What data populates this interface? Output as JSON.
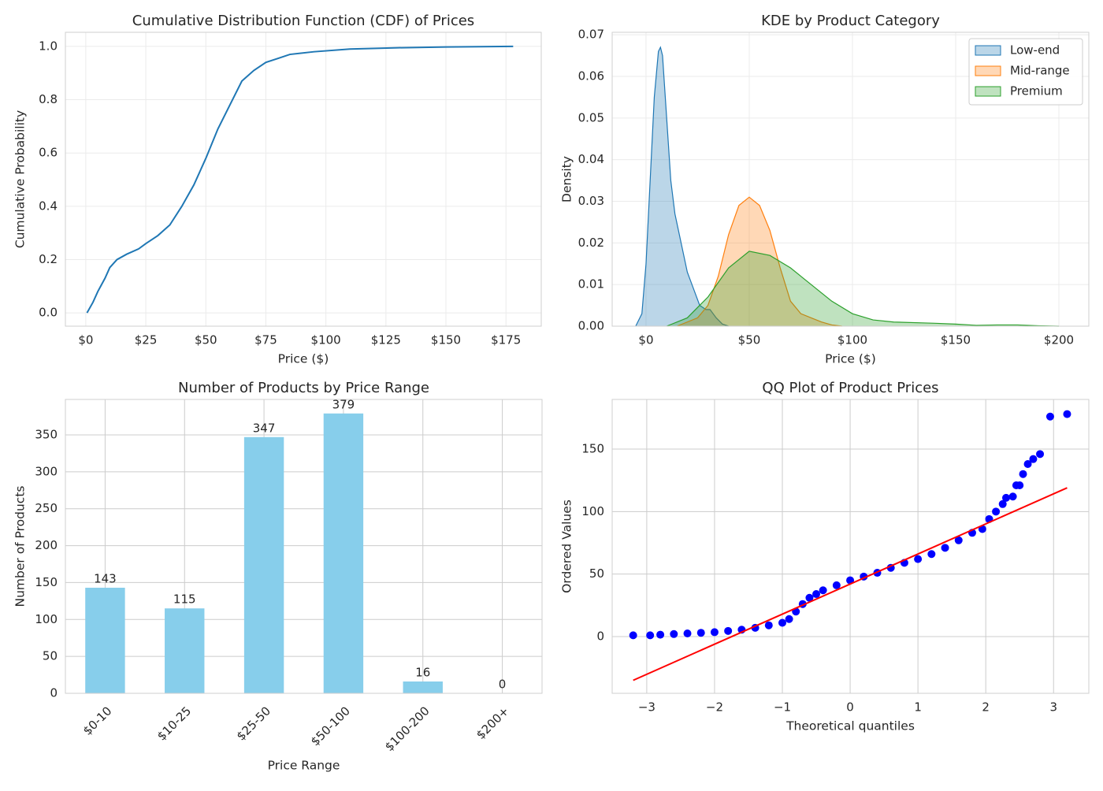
{
  "chart_data": [
    {
      "type": "line",
      "title": "Cumulative Distribution Function (CDF) of Prices",
      "xlabel": "Price ($)",
      "ylabel": "Cumulative Probability",
      "xlim": [
        -8.5,
        189.7
      ],
      "ylim": [
        -0.05,
        1.053
      ],
      "xticks": [
        {
          "value": 0,
          "label": "$0"
        },
        {
          "value": 25,
          "label": "$25"
        },
        {
          "value": 50,
          "label": "$50"
        },
        {
          "value": 75,
          "label": "$75"
        },
        {
          "value": 100,
          "label": "$100"
        },
        {
          "value": 125,
          "label": "$125"
        },
        {
          "value": 150,
          "label": "$150"
        },
        {
          "value": 175,
          "label": "$175"
        }
      ],
      "yticks": [
        {
          "value": 0,
          "label": "0.0"
        },
        0.2,
        0.4,
        0.6,
        0.8,
        {
          "value": 1,
          "label": "1.0"
        }
      ],
      "grid": true,
      "grid_color": "#ebebeb",
      "series": [
        {
          "color": "#1f77b4",
          "x": [
            0.5,
            3,
            5,
            8,
            10,
            13,
            17,
            22,
            25,
            30,
            35,
            40,
            45,
            50,
            55,
            60,
            65,
            70,
            75,
            80,
            85,
            95,
            110,
            130,
            150,
            178
          ],
          "values": [
            0,
            0.04,
            0.08,
            0.13,
            0.17,
            0.2,
            0.22,
            0.24,
            0.26,
            0.29,
            0.33,
            0.4,
            0.48,
            0.58,
            0.69,
            0.78,
            0.87,
            0.91,
            0.94,
            0.955,
            0.97,
            0.98,
            0.99,
            0.995,
            0.998,
            1.0
          ]
        }
      ]
    },
    {
      "type": "area",
      "title": "KDE by Product Category",
      "xlabel": "Price ($)",
      "ylabel": "Density",
      "xlim": [
        -16.4,
        214.5
      ],
      "ylim": [
        0,
        0.0706
      ],
      "xticks": [
        {
          "value": 0,
          "label": "$0"
        },
        {
          "value": 50,
          "label": "$50"
        },
        {
          "value": 100,
          "label": "$100"
        },
        {
          "value": 150,
          "label": "$150"
        },
        {
          "value": 200,
          "label": "$200"
        }
      ],
      "yticks": [
        {
          "value": 0,
          "label": "0.00"
        },
        0.01,
        0.02,
        0.03,
        0.04,
        0.05,
        0.06,
        0.07
      ],
      "grid": true,
      "grid_color": "#ebebeb",
      "legend": "upper right",
      "series": [
        {
          "name": "Low-end",
          "color": "#1f77b4",
          "x": [
            -5,
            -2,
            0,
            2,
            4,
            6,
            7,
            8,
            10,
            12,
            14,
            17,
            20,
            23,
            26,
            29,
            31,
            34,
            37,
            40
          ],
          "values": [
            0,
            0.003,
            0.015,
            0.035,
            0.055,
            0.066,
            0.067,
            0.065,
            0.05,
            0.035,
            0.027,
            0.02,
            0.013,
            0.009,
            0.005,
            0.004,
            0.004,
            0.002,
            0.0005,
            0
          ]
        },
        {
          "name": "Mid-range",
          "color": "#ff7f0e",
          "x": [
            15,
            25,
            30,
            35,
            40,
            45,
            50,
            55,
            60,
            65,
            70,
            75,
            80,
            85,
            90,
            95
          ],
          "values": [
            0,
            0.002,
            0.005,
            0.012,
            0.022,
            0.029,
            0.031,
            0.029,
            0.023,
            0.014,
            0.006,
            0.003,
            0.002,
            0.001,
            0.0003,
            0
          ]
        },
        {
          "name": "Premium",
          "color": "#2ca02c",
          "x": [
            10,
            20,
            30,
            40,
            50,
            60,
            70,
            80,
            90,
            100,
            110,
            120,
            140,
            150,
            160,
            170,
            180,
            190,
            200
          ],
          "values": [
            0,
            0.002,
            0.007,
            0.014,
            0.018,
            0.017,
            0.014,
            0.01,
            0.006,
            0.003,
            0.0015,
            0.001,
            0.0007,
            0.0005,
            0.0002,
            0.0003,
            0.0003,
            0.0001,
            0
          ]
        }
      ]
    },
    {
      "type": "bar",
      "title": "Number of Products by Price Range",
      "xlabel": "Price Range",
      "ylabel": "Number of Products",
      "categories": [
        "$0-10",
        "$10-25",
        "$25-50",
        "$50-100",
        "$100-200",
        "$200+"
      ],
      "values": [
        143,
        115,
        347,
        379,
        16,
        0
      ],
      "color": "#87ceeb",
      "ylim": [
        0,
        398
      ],
      "yticks": [
        0,
        50,
        100,
        150,
        200,
        250,
        300,
        350
      ],
      "grid": true,
      "grid_color": "#cccccc"
    },
    {
      "type": "scatter",
      "title": "QQ Plot of Product Prices",
      "xlabel": "Theoretical quantiles",
      "ylabel": "Ordered Values",
      "xlim": [
        -3.51,
        3.52
      ],
      "ylim": [
        -45.4,
        189.7
      ],
      "xticks": [
        {
          "value": -3,
          "label": "−3"
        },
        {
          "value": -2,
          "label": "−2"
        },
        {
          "value": -1,
          "label": "−1"
        },
        0,
        1,
        2,
        3
      ],
      "yticks": [
        0,
        50,
        100,
        150
      ],
      "grid": true,
      "grid_color": "#cccccc",
      "color": "#0000ff",
      "x": [
        -3.2,
        -2.95,
        -2.8,
        -2.6,
        -2.4,
        -2.2,
        -2,
        -1.8,
        -1.6,
        -1.4,
        -1.2,
        -1,
        -0.9,
        -0.8,
        -0.7,
        -0.6,
        -0.5,
        -0.4,
        -0.2,
        0,
        0.2,
        0.4,
        0.6,
        0.8,
        1,
        1.2,
        1.4,
        1.6,
        1.8,
        1.95,
        2.05,
        2.15,
        2.25,
        2.3,
        2.4,
        2.45,
        2.5,
        2.55,
        2.62,
        2.7,
        2.8,
        2.95,
        3.2
      ],
      "values": [
        1,
        1,
        1.5,
        2,
        2.5,
        3,
        3.5,
        4.5,
        5.5,
        7,
        9,
        11,
        14,
        20,
        26,
        31,
        34,
        37,
        41,
        45,
        48,
        51,
        55,
        59,
        62,
        66,
        71,
        77,
        83,
        86,
        94,
        100,
        106,
        111,
        112,
        121,
        121,
        130,
        138,
        142,
        146,
        176,
        178
      ],
      "fit_line": {
        "color": "#ff0000",
        "x": [
          -3.2,
          3.2
        ],
        "values": [
          -35,
          119
        ]
      }
    }
  ]
}
